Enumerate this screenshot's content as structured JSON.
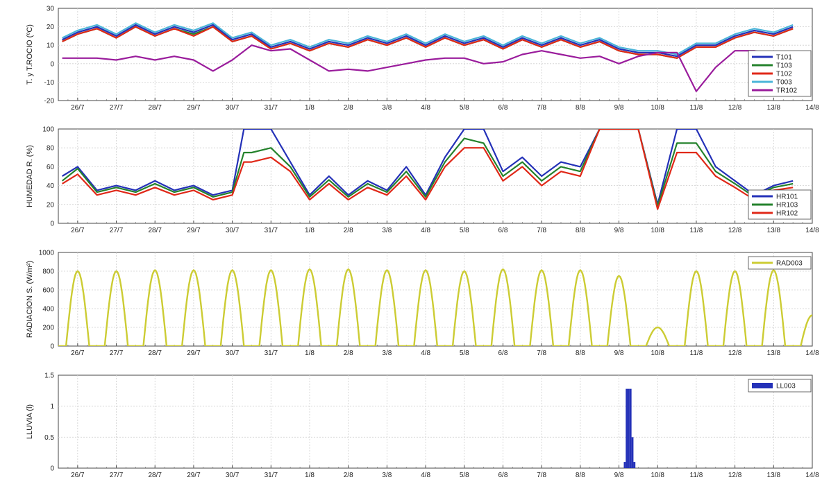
{
  "chart_data": [
    {
      "type": "line",
      "ylabel": "T. y T.ROCIO (ºC)",
      "ylim": [
        -20,
        30
      ],
      "yticks": [
        "-20",
        "-10",
        "0",
        "10",
        "20",
        "30"
      ],
      "xlim": [
        25.5,
        45.0
      ],
      "categories": [
        "26/7",
        "27/7",
        "28/7",
        "29/7",
        "30/7",
        "31/7",
        "1/8",
        "2/8",
        "3/8",
        "4/8",
        "5/8",
        "6/8",
        "7/8",
        "8/8",
        "9/8",
        "10/8",
        "11/8",
        "12/8",
        "13/8",
        "14/8"
      ],
      "legend_position": "right",
      "series": [
        {
          "name": "T101",
          "color": "#2431b8",
          "x": [
            25.6,
            26,
            26.5,
            27,
            27.5,
            28,
            28.5,
            29,
            29.5,
            30,
            30.5,
            31,
            31.5,
            32,
            32.5,
            33,
            33.5,
            34,
            34.5,
            35,
            35.5,
            36,
            36.5,
            37,
            37.5,
            38,
            38.5,
            39,
            39.5,
            40,
            40.5,
            41,
            41.5,
            42,
            42.5,
            43,
            43.5,
            44,
            44.5
          ],
          "values": [
            13,
            17,
            20,
            15,
            21,
            16,
            20,
            17,
            21,
            13,
            16,
            9,
            12,
            8,
            12,
            10,
            14,
            11,
            15,
            10,
            15,
            11,
            14,
            9,
            14,
            10,
            14,
            10,
            13,
            8,
            6,
            6,
            4,
            10,
            10,
            15,
            18,
            16,
            20
          ]
        },
        {
          "name": "T103",
          "color": "#24822c",
          "x": [
            25.6,
            26,
            26.5,
            27,
            27.5,
            28,
            28.5,
            29,
            29.5,
            30,
            30.5,
            31,
            31.5,
            32,
            32.5,
            33,
            33.5,
            34,
            34.5,
            35,
            35.5,
            36,
            36.5,
            37,
            37.5,
            38,
            38.5,
            39,
            39.5,
            40,
            40.5,
            41,
            41.5,
            42,
            42.5,
            43,
            43.5,
            44,
            44.5
          ],
          "values": [
            12,
            16,
            19,
            14,
            20,
            15,
            19,
            16,
            20,
            12,
            15,
            8,
            11,
            7,
            11,
            9,
            13,
            10,
            14,
            9,
            14,
            10,
            13,
            8,
            13,
            9,
            13,
            9,
            12,
            7,
            5,
            5,
            3,
            9,
            9,
            14,
            17,
            15,
            19
          ]
        },
        {
          "name": "T102",
          "color": "#e02818",
          "x": [
            25.6,
            26,
            26.5,
            27,
            27.5,
            28,
            28.5,
            29,
            29.5,
            30,
            30.5,
            31,
            31.5,
            32,
            32.5,
            33,
            33.5,
            34,
            34.5,
            35,
            35.5,
            36,
            36.5,
            37,
            37.5,
            38,
            38.5,
            39,
            39.5,
            40,
            40.5,
            41,
            41.5,
            42,
            42.5,
            43,
            43.5,
            44,
            44.5
          ],
          "values": [
            12,
            16,
            19,
            14,
            20,
            15,
            19,
            15,
            20,
            12,
            15,
            8,
            11,
            7,
            11,
            9,
            13,
            10,
            14,
            9,
            14,
            10,
            13,
            8,
            13,
            9,
            13,
            9,
            12,
            7,
            5,
            5,
            3,
            9,
            9,
            14,
            17,
            15,
            19
          ]
        },
        {
          "name": "T003",
          "color": "#4ab4d8",
          "x": [
            25.6,
            26,
            26.5,
            27,
            27.5,
            28,
            28.5,
            29,
            29.5,
            30,
            30.5,
            31,
            31.5,
            32,
            32.5,
            33,
            33.5,
            34,
            34.5,
            35,
            35.5,
            36,
            36.5,
            37,
            37.5,
            38,
            38.5,
            39,
            39.5,
            40,
            40.5,
            41,
            41.5,
            42,
            42.5,
            43,
            43.5,
            44,
            44.5
          ],
          "values": [
            14,
            18,
            21,
            16,
            22,
            17,
            21,
            18,
            22,
            14,
            17,
            10,
            13,
            9,
            13,
            11,
            15,
            12,
            16,
            11,
            16,
            12,
            15,
            10,
            15,
            11,
            15,
            11,
            14,
            9,
            7,
            7,
            5,
            11,
            11,
            16,
            19,
            17,
            21
          ]
        },
        {
          "name": "TR102",
          "color": "#9a1c9c",
          "x": [
            25.6,
            26,
            26.5,
            27,
            27.5,
            28,
            28.5,
            29,
            29.5,
            30,
            30.5,
            31,
            31.5,
            32,
            32.5,
            33,
            33.5,
            34,
            34.5,
            35,
            35.5,
            36,
            36.5,
            37,
            37.5,
            38,
            38.5,
            39,
            39.5,
            40,
            40.5,
            41,
            41.5,
            42,
            42.5,
            43,
            43.5,
            44,
            44.5
          ],
          "values": [
            3,
            3,
            3,
            2,
            4,
            2,
            4,
            2,
            -4,
            2,
            10,
            7,
            8,
            2,
            -4,
            -3,
            -4,
            -2,
            0,
            2,
            3,
            3,
            0,
            1,
            5,
            7,
            5,
            3,
            4,
            0,
            4,
            6,
            6,
            -15,
            -2,
            7,
            7,
            5,
            4
          ]
        }
      ]
    },
    {
      "type": "line",
      "ylabel": "HUMEDAD R. (%)",
      "ylim": [
        0,
        100
      ],
      "yticks": [
        "0",
        "20",
        "40",
        "60",
        "80",
        "100"
      ],
      "xlim": [
        25.5,
        45.0
      ],
      "categories": [
        "26/7",
        "27/7",
        "28/7",
        "29/7",
        "30/7",
        "31/7",
        "1/8",
        "2/8",
        "3/8",
        "4/8",
        "5/8",
        "6/8",
        "7/8",
        "8/8",
        "9/8",
        "10/8",
        "11/8",
        "12/8",
        "13/8",
        "14/8"
      ],
      "legend_position": "right",
      "series": [
        {
          "name": "HR101",
          "color": "#2431b8",
          "x": [
            25.6,
            26,
            26.5,
            27,
            27.5,
            28,
            28.5,
            29,
            29.5,
            30,
            30.3,
            30.5,
            31,
            31.5,
            32,
            32.5,
            33,
            33.5,
            34,
            34.5,
            35,
            35.5,
            36,
            36.5,
            37,
            37.5,
            38,
            38.5,
            39,
            39.5,
            40,
            40.5,
            41,
            41.5,
            42,
            42.5,
            43,
            43.5,
            44,
            44.5
          ],
          "values": [
            50,
            60,
            35,
            40,
            35,
            45,
            35,
            40,
            30,
            35,
            100,
            100,
            100,
            65,
            30,
            50,
            30,
            45,
            35,
            60,
            30,
            70,
            100,
            100,
            55,
            70,
            50,
            65,
            60,
            100,
            100,
            100,
            20,
            100,
            100,
            60,
            45,
            30,
            40,
            45
          ]
        },
        {
          "name": "HR103",
          "color": "#24822c",
          "x": [
            25.6,
            26,
            26.5,
            27,
            27.5,
            28,
            28.5,
            29,
            29.5,
            30,
            30.3,
            30.5,
            31,
            31.5,
            32,
            32.5,
            33,
            33.5,
            34,
            34.5,
            35,
            35.5,
            36,
            36.5,
            37,
            37.5,
            38,
            38.5,
            39,
            39.5,
            40,
            40.5,
            41,
            41.5,
            42,
            42.5,
            43,
            43.5,
            44,
            44.5
          ],
          "values": [
            45,
            58,
            33,
            38,
            33,
            42,
            33,
            38,
            28,
            33,
            75,
            75,
            80,
            60,
            28,
            46,
            28,
            42,
            33,
            55,
            28,
            65,
            90,
            85,
            50,
            65,
            45,
            60,
            55,
            100,
            100,
            100,
            18,
            85,
            85,
            55,
            42,
            28,
            38,
            42
          ]
        },
        {
          "name": "HR102",
          "color": "#e02818",
          "x": [
            25.6,
            26,
            26.5,
            27,
            27.5,
            28,
            28.5,
            29,
            29.5,
            30,
            30.3,
            30.5,
            31,
            31.5,
            32,
            32.5,
            33,
            33.5,
            34,
            34.5,
            35,
            35.5,
            36,
            36.5,
            37,
            37.5,
            38,
            38.5,
            39,
            39.5,
            40,
            40.5,
            41,
            41.5,
            42,
            42.5,
            43,
            43.5,
            44,
            44.5
          ],
          "values": [
            42,
            52,
            30,
            35,
            30,
            38,
            30,
            35,
            25,
            30,
            65,
            65,
            70,
            55,
            25,
            42,
            25,
            38,
            30,
            50,
            25,
            60,
            80,
            80,
            45,
            60,
            40,
            55,
            50,
            100,
            100,
            100,
            15,
            75,
            75,
            50,
            38,
            25,
            35,
            38
          ]
        }
      ]
    },
    {
      "type": "line",
      "ylabel": "RADIACION S. (W/m²)",
      "ylim": [
        0,
        1000
      ],
      "yticks": [
        "0",
        "200",
        "400",
        "600",
        "800",
        "1000"
      ],
      "xlim": [
        25.5,
        45.0
      ],
      "categories": [
        "26/7",
        "27/7",
        "28/7",
        "29/7",
        "30/7",
        "31/7",
        "1/8",
        "2/8",
        "3/8",
        "4/8",
        "5/8",
        "6/8",
        "7/8",
        "8/8",
        "9/8",
        "10/8",
        "11/8",
        "12/8",
        "13/8",
        "14/8"
      ],
      "legend_position": "top-right",
      "series": [
        {
          "name": "RAD003",
          "color": "#cccc33",
          "peaks": [
            800,
            800,
            810,
            810,
            810,
            810,
            820,
            820,
            810,
            810,
            800,
            820,
            810,
            810,
            750,
            200,
            800,
            800,
            810,
            330
          ]
        }
      ]
    },
    {
      "type": "bar",
      "ylabel": "LLUVIA (l)",
      "ylim": [
        0,
        1.5
      ],
      "yticks": [
        "0",
        "0.5",
        "1",
        "1.5"
      ],
      "xlim": [
        25.5,
        45.0
      ],
      "categories": [
        "26/7",
        "27/7",
        "28/7",
        "29/7",
        "30/7",
        "31/7",
        "1/8",
        "2/8",
        "3/8",
        "4/8",
        "5/8",
        "6/8",
        "7/8",
        "8/8",
        "9/8",
        "10/8",
        "11/8",
        "12/8",
        "13/8",
        "14/8"
      ],
      "legend_position": "top-right",
      "series": [
        {
          "name": "LL003",
          "color": "#2431b8",
          "x": [
            40.15,
            40.2,
            40.25,
            40.3,
            40.35,
            40.4
          ],
          "values": [
            0.1,
            1.28,
            1.28,
            1.28,
            0.5,
            0.1
          ]
        }
      ]
    }
  ]
}
